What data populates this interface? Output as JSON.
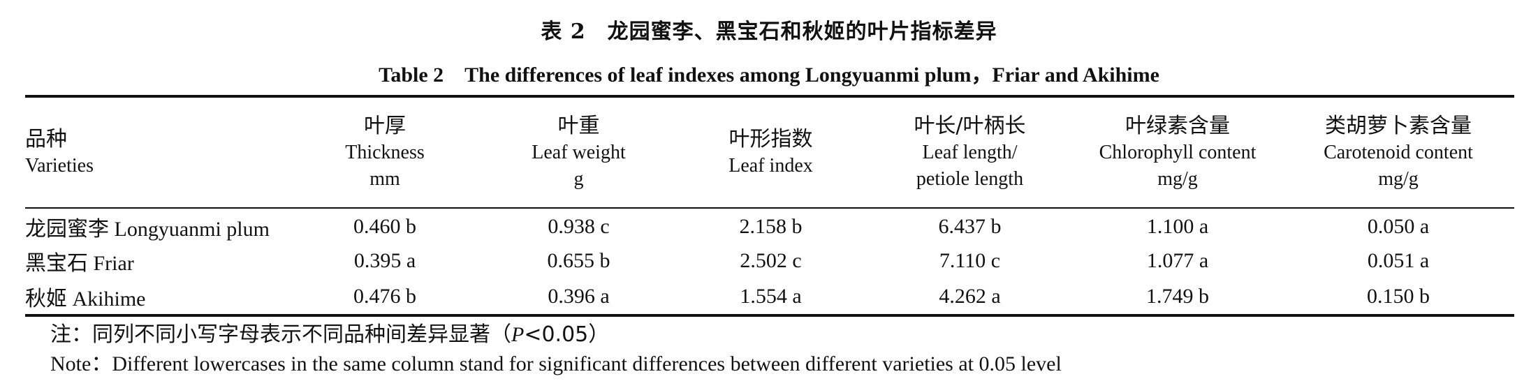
{
  "title_zh": "表 2　龙园蜜李、黑宝石和秋姬的叶片指标差异",
  "title_en": "Table 2　The differences of leaf indexes among Longyuanmi plum，Friar and Akihime",
  "columns": [
    {
      "zh": "品种",
      "en": "Varieties",
      "unit": ""
    },
    {
      "zh": "叶厚",
      "en": "Thickness",
      "unit": "mm"
    },
    {
      "zh": "叶重",
      "en": "Leaf weight",
      "unit": "g"
    },
    {
      "zh": "叶形指数",
      "en": "Leaf index",
      "unit": ""
    },
    {
      "zh": "叶长/叶柄长",
      "en": "Leaf length/",
      "en2": "petiole length",
      "unit": ""
    },
    {
      "zh": "叶绿素含量",
      "en": "Chlorophyll content",
      "unit": "mg/g"
    },
    {
      "zh": "类胡萝卜素含量",
      "en": "Carotenoid content",
      "unit": "mg/g"
    }
  ],
  "rows": [
    {
      "name_zh": "龙园蜜李",
      "name_en": "Longyuanmi plum",
      "values": [
        "0.460 b",
        "0.938 c",
        "2.158 b",
        "6.437 b",
        "1.100 a",
        "0.050 a"
      ]
    },
    {
      "name_zh": "黑宝石",
      "name_en": "Friar",
      "values": [
        "0.395 a",
        "0.655 b",
        "2.502 c",
        "7.110 c",
        "1.077 a",
        "0.051 a"
      ]
    },
    {
      "name_zh": "秋姬",
      "name_en": "Akihime",
      "values": [
        "0.476 b",
        "0.396 a",
        "1.554 a",
        "4.262 a",
        "1.749 b",
        "0.150 b"
      ]
    }
  ],
  "note_zh_prefix": "注：同列不同小写字母表示不同品种间差异显著（",
  "note_zh_p": "P",
  "note_zh_suffix": "<0.05）",
  "note_en": "Note：Different lowercases in the same column stand for significant differences between different varieties at 0.05 level"
}
